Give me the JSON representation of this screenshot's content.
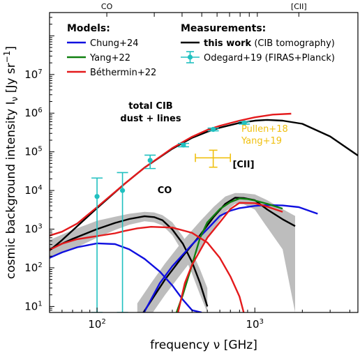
{
  "chart_data": {
    "type": "line",
    "xlabel": "frequency ν [GHz]",
    "ylabel": "cosmic background intensity I",
    "ylabel_sub": "ν",
    "ylabel_unit": "[Jy sr",
    "ylabel_unit_sup": "−1",
    "ylabel_unit_end": "]",
    "x_scale": "log",
    "y_scale": "log",
    "xlim": [
      50,
      4500
    ],
    "ylim": [
      7,
      400000000
    ],
    "x_ticks": [
      {
        "value": 100,
        "base": "10",
        "exp": "2"
      },
      {
        "value": 1000,
        "base": "10",
        "exp": "3"
      }
    ],
    "y_ticks": [
      {
        "value": 10,
        "base": "10",
        "exp": "1"
      },
      {
        "value": 100,
        "base": "10",
        "exp": "2"
      },
      {
        "value": 1000,
        "base": "10",
        "exp": "3"
      },
      {
        "value": 10000,
        "base": "10",
        "exp": "4"
      },
      {
        "value": 100000,
        "base": "10",
        "exp": "5"
      },
      {
        "value": 1000000,
        "base": "10",
        "exp": "6"
      },
      {
        "value": 10000000,
        "base": "10",
        "exp": "7"
      }
    ],
    "top_axis": {
      "co_label": "CO",
      "co_freq": 115.3,
      "cii_label": "[CII]",
      "cii_freq": 1900.5,
      "co_ladder_marks": [
        230.5,
        345.8,
        461.0,
        576.3,
        691.5,
        806.7,
        921.8,
        1037.0
      ]
    },
    "legend_models": {
      "title": "Models:",
      "entries": [
        {
          "label": "Chung+24",
          "color": "#1010e0"
        },
        {
          "label": "Yang+22",
          "color": "#108010"
        },
        {
          "label": "Béthermin+22",
          "color": "#e41a1c"
        }
      ]
    },
    "legend_measurements": {
      "title": "Measurements:",
      "this_work_bold": "this work",
      "this_work_rest": " (CIB tomography)",
      "odegard_label": "Odegard+19 (FIRAS+Planck)",
      "colors": {
        "this_work": "#000000",
        "odegard": "#20c0c0"
      }
    },
    "annotations": {
      "total_line1": "total CIB",
      "total_line2": "dust + lines",
      "co": "CO",
      "cii": "[CII]",
      "pullen_line1": "Pullen+18",
      "pullen_line2": "Yang+19",
      "pullen_color": "#f0c010"
    },
    "colors": {
      "band": "#bdbdbd",
      "black": "#000000"
    },
    "series": [
      {
        "name": "this work total",
        "role": "total",
        "color": "#000000",
        "x": [
          50,
          60,
          75,
          100,
          150,
          200,
          300,
          400,
          500,
          600,
          800,
          1000,
          1200,
          1500,
          2000,
          3000,
          4500
        ],
        "y": [
          280,
          520,
          1200,
          3500,
          15000,
          39000,
          120000,
          230000,
          330000,
          420000,
          560000,
          640000,
          670000,
          640000,
          530000,
          250000,
          80000
        ]
      },
      {
        "name": "Béthermin+22 total",
        "role": "total",
        "color": "#e41a1c",
        "x": [
          50,
          60,
          75,
          100,
          150,
          200,
          300,
          400,
          500,
          600,
          800,
          1000,
          1300,
          1700
        ],
        "y": [
          680,
          860,
          1400,
          3700,
          15000,
          39000,
          125000,
          245000,
          370000,
          470000,
          640000,
          780000,
          920000,
          970000
        ]
      },
      {
        "name": "this work CO",
        "role": "co",
        "color": "#000000",
        "x": [
          50,
          70,
          100,
          130,
          160,
          200,
          230,
          260,
          300,
          350,
          400,
          450,
          500
        ],
        "y": [
          300,
          560,
          1000,
          1450,
          1830,
          2150,
          2050,
          1700,
          980,
          420,
          140,
          40,
          10
        ]
      },
      {
        "name": "this work [CII]",
        "role": "cii",
        "color": "#000000",
        "x": [
          180,
          220,
          270,
          350,
          450,
          550,
          650,
          750,
          850,
          1000,
          1200,
          1500,
          1800
        ],
        "y": [
          4,
          14,
          50,
          200,
          700,
          2100,
          4500,
          6500,
          6400,
          5600,
          3200,
          1800,
          1200
        ]
      },
      {
        "name": "Chung+24 CO",
        "role": "co",
        "color": "#1010e0",
        "x": [
          50,
          60,
          75,
          100,
          130,
          160,
          200,
          250,
          300,
          350,
          400,
          460
        ],
        "y": [
          180,
          250,
          340,
          430,
          410,
          300,
          170,
          80,
          35,
          15,
          8,
          7
        ]
      },
      {
        "name": "Chung+24 [CII]",
        "role": "cii",
        "color": "#1010e0",
        "x": [
          190,
          250,
          300,
          400,
          500,
          600,
          700,
          800,
          1000,
          1200,
          1500,
          1900,
          2500
        ],
        "y": [
          5,
          40,
          110,
          400,
          1000,
          2200,
          3000,
          3500,
          4000,
          4200,
          4100,
          3700,
          2500
        ]
      },
      {
        "name": "Yang+22 [CII]",
        "role": "cii",
        "color": "#108010",
        "x": [
          310,
          350,
          400,
          450,
          500,
          600,
          700,
          800,
          900,
          1000,
          1200,
          1500
        ],
        "y": [
          5,
          20,
          120,
          600,
          1500,
          3300,
          5000,
          6200,
          6000,
          5500,
          4500,
          3400
        ]
      },
      {
        "name": "Béthermin+22 CO",
        "role": "co",
        "color": "#e41a1c",
        "x": [
          50,
          60,
          75,
          100,
          130,
          150,
          180,
          220,
          300,
          400,
          500,
          600,
          700,
          800,
          850
        ],
        "y": [
          290,
          420,
          550,
          660,
          780,
          900,
          1050,
          1150,
          1100,
          800,
          450,
          180,
          60,
          18,
          7
        ]
      },
      {
        "name": "Béthermin+22 [CII]",
        "role": "cii",
        "color": "#e41a1c",
        "x": [
          320,
          360,
          400,
          450,
          500,
          600,
          700,
          800,
          1000,
          1200,
          1500
        ],
        "y": [
          5,
          40,
          120,
          280,
          600,
          1500,
          3300,
          4800,
          4700,
          3800,
          2800
        ]
      }
    ],
    "bands": [
      {
        "name": "CO band",
        "x": [
          50,
          70,
          100,
          130,
          160,
          200,
          230,
          260,
          300,
          350,
          400,
          450,
          500
        ],
        "y_low": [
          180,
          300,
          600,
          950,
          1300,
          1600,
          1500,
          1250,
          700,
          250,
          70,
          20,
          7
        ],
        "y_high": [
          520,
          950,
          1650,
          2100,
          2500,
          2800,
          2700,
          2300,
          1500,
          650,
          260,
          90,
          30
        ]
      },
      {
        "name": "[CII] band",
        "x": [
          180,
          220,
          270,
          350,
          450,
          550,
          650,
          750,
          850,
          1000,
          1200,
          1500,
          1800
        ],
        "y_low": [
          2,
          6,
          20,
          80,
          300,
          1000,
          2800,
          4500,
          4400,
          3200,
          1100,
          300,
          7
        ],
        "y_high": [
          12,
          40,
          130,
          500,
          1600,
          3800,
          7000,
          8600,
          8500,
          7900,
          5600,
          3300,
          2200
        ]
      }
    ],
    "odegard": [
      {
        "x": 100,
        "y": 7000,
        "ylo": 7,
        "yhi": 21000
      },
      {
        "x": 145,
        "y": 10000,
        "ylo": 7,
        "yhi": 29000
      },
      {
        "x": 217,
        "y": 60000,
        "ylo": 37000,
        "yhi": 82000
      },
      {
        "x": 353,
        "y": 150000,
        "ylo": 135000,
        "yhi": 165000
      },
      {
        "x": 545,
        "y": 380000,
        "ylo": 350000,
        "yhi": 410000
      },
      {
        "x": 857,
        "y": 560000,
        "ylo": 520000,
        "yhi": 600000
      }
    ],
    "pullen": {
      "x": 545,
      "y": 70000,
      "xlo": 420,
      "xhi": 700,
      "ylo": 40000,
      "yhi": 110000
    }
  }
}
